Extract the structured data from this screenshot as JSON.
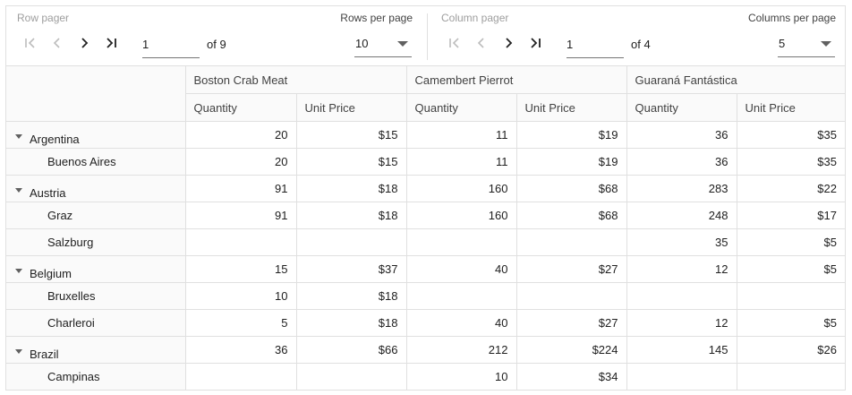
{
  "row_pager": {
    "label": "Row pager",
    "page": "1",
    "of_text": "of 9",
    "per_page_label": "Rows per page",
    "per_page_value": "10"
  },
  "column_pager": {
    "label": "Column pager",
    "page": "1",
    "of_text": "of 4",
    "per_page_label": "Columns per page",
    "per_page_value": "5"
  },
  "columns": [
    "Boston Crab Meat",
    "Camembert Pierrot",
    "Guaraná Fantástica"
  ],
  "measures": [
    "Quantity",
    "Unit Price"
  ],
  "rows": [
    {
      "label": "Argentina",
      "group": true,
      "cells": [
        "20",
        "$15",
        "11",
        "$19",
        "36",
        "$35"
      ]
    },
    {
      "label": "Buenos Aires",
      "group": false,
      "cells": [
        "20",
        "$15",
        "11",
        "$19",
        "36",
        "$35"
      ]
    },
    {
      "label": "Austria",
      "group": true,
      "cells": [
        "91",
        "$18",
        "160",
        "$68",
        "283",
        "$22"
      ]
    },
    {
      "label": "Graz",
      "group": false,
      "cells": [
        "91",
        "$18",
        "160",
        "$68",
        "248",
        "$17"
      ]
    },
    {
      "label": "Salzburg",
      "group": false,
      "cells": [
        "",
        "",
        "",
        "",
        "35",
        "$5"
      ]
    },
    {
      "label": "Belgium",
      "group": true,
      "cells": [
        "15",
        "$37",
        "40",
        "$27",
        "12",
        "$5"
      ]
    },
    {
      "label": "Bruxelles",
      "group": false,
      "cells": [
        "10",
        "$18",
        "",
        "",
        "",
        ""
      ]
    },
    {
      "label": "Charleroi",
      "group": false,
      "cells": [
        "5",
        "$18",
        "40",
        "$27",
        "12",
        "$5"
      ]
    },
    {
      "label": "Brazil",
      "group": true,
      "cells": [
        "36",
        "$66",
        "212",
        "$224",
        "145",
        "$26"
      ]
    },
    {
      "label": "Campinas",
      "group": false,
      "cells": [
        "",
        "",
        "10",
        "$34",
        "",
        ""
      ]
    }
  ]
}
